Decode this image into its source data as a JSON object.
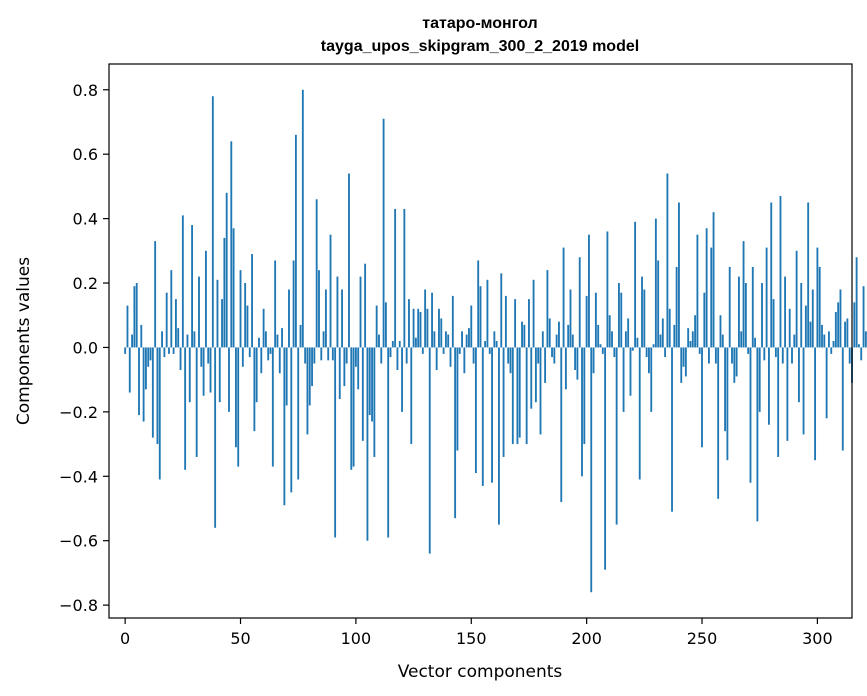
{
  "chart_data": {
    "type": "bar",
    "title": "татаро-монгол",
    "subtitle": "tayga_upos_skipgram_300_2_2019 model",
    "xlabel": "Vector components",
    "ylabel": "Components values",
    "xlim": [
      -7,
      315
    ],
    "ylim": [
      -0.84,
      0.88
    ],
    "xticks": [
      0,
      50,
      100,
      150,
      200,
      250,
      300
    ],
    "yticks": [
      -0.8,
      -0.6,
      -0.4,
      -0.2,
      0.0,
      0.2,
      0.4,
      0.6,
      0.8
    ],
    "xtick_labels": [
      "0",
      "50",
      "100",
      "150",
      "200",
      "250",
      "300"
    ],
    "ytick_labels": [
      "−0.8",
      "−0.6",
      "−0.4",
      "−0.2",
      "0.0",
      "0.2",
      "0.4",
      "0.6",
      "0.8"
    ],
    "bar_color": "#1f77b4",
    "grid": false,
    "legend": "none",
    "x_start": 0,
    "values": [
      -0.02,
      0.13,
      -0.14,
      0.04,
      0.19,
      0.2,
      -0.21,
      0.07,
      -0.23,
      -0.13,
      -0.06,
      -0.04,
      -0.28,
      0.33,
      -0.3,
      -0.41,
      0.05,
      -0.03,
      0.17,
      -0.02,
      0.24,
      -0.02,
      0.15,
      0.06,
      -0.07,
      0.41,
      -0.38,
      0.04,
      -0.17,
      0.38,
      0.05,
      -0.34,
      0.22,
      -0.06,
      -0.15,
      0.3,
      -0.05,
      -0.14,
      0.78,
      -0.56,
      0.21,
      -0.17,
      0.15,
      0.34,
      0.48,
      -0.2,
      0.64,
      0.37,
      -0.31,
      -0.37,
      0.24,
      -0.06,
      0.2,
      0.13,
      -0.03,
      0.29,
      -0.26,
      -0.17,
      0.03,
      -0.08,
      0.12,
      0.05,
      -0.04,
      -0.02,
      -0.37,
      0.27,
      0.04,
      -0.08,
      0.06,
      -0.49,
      -0.18,
      0.18,
      -0.45,
      0.27,
      0.66,
      -0.41,
      0.07,
      0.8,
      -0.05,
      -0.27,
      -0.18,
      -0.12,
      -0.05,
      0.46,
      0.24,
      -0.04,
      0.05,
      0.18,
      -0.04,
      0.35,
      -0.04,
      -0.59,
      0.22,
      -0.16,
      0.18,
      -0.12,
      -0.05,
      0.54,
      -0.38,
      -0.37,
      -0.06,
      -0.13,
      0.22,
      -0.29,
      0.26,
      -0.6,
      -0.21,
      -0.23,
      -0.34,
      0.13,
      0.04,
      -0.05,
      0.71,
      0.14,
      -0.59,
      -0.03,
      0.02,
      0.43,
      -0.07,
      0.02,
      -0.2,
      0.43,
      -0.05,
      0.15,
      -0.3,
      0.12,
      0.03,
      0.12,
      0.11,
      -0.02,
      0.18,
      0.12,
      -0.64,
      0.17,
      0.05,
      -0.07,
      0.12,
      0.09,
      -0.02,
      0.05,
      0.04,
      -0.06,
      0.16,
      -0.53,
      -0.32,
      -0.02,
      0.05,
      -0.08,
      0.04,
      0.06,
      0.13,
      -0.05,
      -0.39,
      0.27,
      0.19,
      -0.43,
      0.02,
      0.21,
      -0.02,
      -0.42,
      0.05,
      0.02,
      -0.55,
      0.23,
      -0.34,
      0.16,
      -0.05,
      -0.08,
      -0.3,
      0.15,
      -0.3,
      -0.28,
      0.08,
      0.07,
      -0.3,
      0.15,
      -0.19,
      0.21,
      -0.17,
      -0.05,
      -0.27,
      0.05,
      -0.11,
      0.24,
      0.09,
      -0.03,
      -0.05,
      0.04,
      0.08,
      -0.48,
      0.31,
      -0.13,
      0.07,
      0.18,
      0.04,
      -0.07,
      -0.1,
      0.28,
      -0.4,
      -0.3,
      0.16,
      0.35,
      -0.76,
      -0.08,
      0.17,
      0.07,
      0.01,
      -0.02,
      -0.69,
      0.36,
      0.1,
      0.05,
      -0.03,
      -0.55,
      0.2,
      0.17,
      -0.2,
      0.05,
      0.09,
      -0.15,
      -0.01,
      0.39,
      0.03,
      -0.41,
      0.22,
      0.18,
      -0.03,
      -0.08,
      -0.2,
      0.01,
      0.4,
      0.27,
      0.04,
      0.09,
      -0.03,
      0.54,
      0.12,
      -0.51,
      0.07,
      0.25,
      0.45,
      -0.11,
      -0.06,
      -0.09,
      0.06,
      0.02,
      0.05,
      0.1,
      0.35,
      -0.02,
      -0.31,
      0.17,
      0.37,
      -0.05,
      0.31,
      0.42,
      -0.05,
      -0.47,
      0.1,
      0.04,
      -0.26,
      -0.35,
      0.25,
      -0.05,
      -0.11,
      -0.09,
      0.22,
      0.05,
      0.33,
      0.2,
      -0.02,
      -0.42,
      0.25,
      0.03,
      -0.54,
      -0.2,
      0.2,
      -0.04,
      0.31,
      -0.24,
      0.45,
      0.15,
      -0.03,
      -0.34,
      0.47,
      -0.05,
      0.22,
      -0.29,
      0.12,
      -0.05,
      0.04,
      0.3,
      -0.17,
      0.2,
      -0.27,
      0.13,
      0.45,
      0.08,
      0.18,
      -0.35,
      0.31,
      0.25,
      0.07,
      0.04,
      -0.22,
      0.05,
      -0.02,
      0.02,
      0.11,
      0.14,
      0.18,
      -0.32,
      0.08,
      0.09,
      -0.05,
      -0.11,
      0.14,
      0.28,
      0.01,
      -0.04,
      0.19,
      0.05,
      0.12,
      0.06,
      -0.18,
      -0.05,
      0.09,
      -0.16,
      0.3,
      0.07,
      -0.13,
      0.24,
      0.04,
      0.05,
      0.21,
      0.28,
      -0.09,
      -0.02,
      0.25,
      0.06,
      0.16,
      0.09,
      0.08,
      -0.06,
      0.05,
      0.17,
      0.46,
      -0.1,
      0.26,
      0.49,
      0.17,
      0.05,
      0.33,
      0.57,
      0.33,
      -0.15,
      -0.04,
      0.6,
      0.64,
      0.33,
      -0.1,
      0.2,
      0.31,
      0.15,
      0.5,
      -0.09,
      0.06,
      0.1,
      -0.46,
      0.04,
      0.33,
      0.14,
      0.06,
      -0.11,
      0.26,
      0.24,
      0.04,
      -0.26,
      0.08,
      0.08
    ]
  }
}
